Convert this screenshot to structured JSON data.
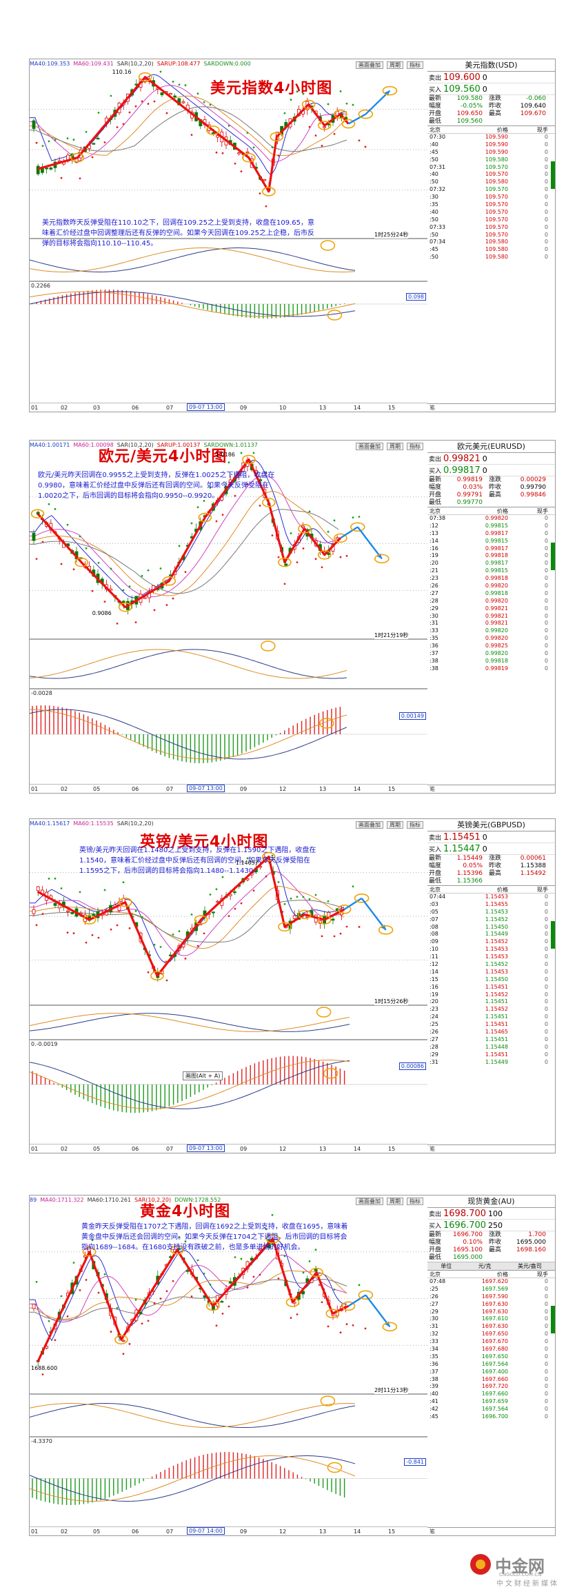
{
  "common": {
    "tools": [
      "画面叠加",
      "周期",
      "指标"
    ],
    "quote_labels": {
      "sell": "卖出",
      "buy": "买入",
      "latest": "最新",
      "change": "涨跌",
      "amplitude": "幅度",
      "prevclose": "昨收",
      "open": "开盘",
      "high": "最高",
      "low": "最低"
    },
    "tick_headers": [
      "北京",
      "价格",
      "现手"
    ],
    "foot": "笔"
  },
  "panels": [
    {
      "id": "usd",
      "indicator": [
        "MA40:109.353",
        "MA60:109.431",
        "SAR(10,2,20)",
        "SARUP:108.477",
        "SARDOWN:0.000"
      ],
      "title": "美元指数4小时图",
      "note": "美元指数昨天反弹受阻在110.10之下，回调在109.25之上受到支持，收盘在109.65，意味着汇价经过盘中回调整理后还有反弹的空间。如果今天回调在109.25之上企稳，后市反弹的目标将会指向110.10--110.45。",
      "countdown": "1时25分24秒",
      "price_labels": [
        "110.16"
      ],
      "sub_left": "0.2266",
      "valbox": "0.098",
      "xaxis": [
        "01",
        "02",
        "03",
        "06",
        "07",
        "09-07 13:00",
        "09",
        "10",
        "13",
        "14",
        "15"
      ],
      "quote": {
        "title": "美元指数(USD)",
        "sell": "109.600",
        "sell_vol": "0",
        "buy": "109.560",
        "buy_vol": "0",
        "latest": "109.580",
        "change": "-0.060",
        "amplitude": "-0.05%",
        "prevclose": "109.640",
        "open": "109.650",
        "high": "109.670",
        "low": "109.560"
      },
      "ticks": [
        [
          "07:30",
          "109.590",
          "0"
        ],
        [
          ":40",
          "109.590",
          "0"
        ],
        [
          ":45",
          "109.590",
          "0"
        ],
        [
          ":50",
          "109.580",
          "0"
        ],
        [
          "07:31",
          "109.570",
          "0"
        ],
        [
          ":40",
          "109.570",
          "0"
        ],
        [
          ":50",
          "109.580",
          "0"
        ],
        [
          "07:32",
          "109.570",
          "0"
        ],
        [
          ":30",
          "109.570",
          "0"
        ],
        [
          ":35",
          "109.570",
          "0"
        ],
        [
          ":40",
          "109.570",
          "0"
        ],
        [
          ":50",
          "109.570",
          "0"
        ],
        [
          "07:33",
          "109.570",
          "0"
        ],
        [
          ":50",
          "109.570",
          "0"
        ],
        [
          "07:34",
          "109.580",
          "0"
        ],
        [
          ":45",
          "109.580",
          "0"
        ],
        [
          ":50",
          "109.580",
          "0"
        ]
      ]
    },
    {
      "id": "eur",
      "indicator": [
        "MA40:1.00171",
        "MA60:1.00098",
        "SAR(10,2,20)",
        "SARUP:1.00137",
        "SARDOWN:1.01137"
      ],
      "title": "欧元/美元4小时图",
      "note": "欧元/美元昨天回调在0.9955之上受到支持，反弹在1.0025之下遇阻，收盘在0.9980，意味着汇价经过盘中反弹后还有回调的空间。如果今天反弹受阻在1.0020之下，后市回调的目标将会指向0.9950--0.9920。",
      "countdown": "1时21分19秒",
      "price_labels": [
        "1.0186",
        "0.9086"
      ],
      "sub_left": "-0.0028",
      "valbox": "0.00149",
      "xaxis": [
        "01",
        "02",
        "05",
        "06",
        "07",
        "09-07 13:00",
        "09",
        "12",
        "13",
        "14",
        "15"
      ],
      "quote": {
        "title": "欧元美元(EURUSD)",
        "sell": "0.99821",
        "sell_vol": "0",
        "buy": "0.99817",
        "buy_vol": "0",
        "latest": "0.99819",
        "change": "0.00029",
        "amplitude": "0.03%",
        "prevclose": "0.99790",
        "open": "0.99791",
        "high": "0.99846",
        "low": "0.99770"
      },
      "ticks": [
        [
          "07:38",
          "0.99820",
          "0"
        ],
        [
          ":12",
          "0.99815",
          "0"
        ],
        [
          ":13",
          "0.99817",
          "0"
        ],
        [
          ":14",
          "0.99815",
          "0"
        ],
        [
          ":16",
          "0.99817",
          "0"
        ],
        [
          ":19",
          "0.99818",
          "0"
        ],
        [
          ":20",
          "0.99817",
          "0"
        ],
        [
          ":21",
          "0.99815",
          "0"
        ],
        [
          ":23",
          "0.99818",
          "0"
        ],
        [
          ":26",
          "0.99820",
          "0"
        ],
        [
          ":27",
          "0.99818",
          "0"
        ],
        [
          ":28",
          "0.99820",
          "0"
        ],
        [
          ":29",
          "0.99821",
          "0"
        ],
        [
          ":30",
          "0.99821",
          "0"
        ],
        [
          ":31",
          "0.99821",
          "0"
        ],
        [
          ":33",
          "0.99820",
          "0"
        ],
        [
          ":35",
          "0.99820",
          "0"
        ],
        [
          ":36",
          "0.99825",
          "0"
        ],
        [
          ":37",
          "0.99820",
          "0"
        ],
        [
          ":38",
          "0.99818",
          "0"
        ],
        [
          ":38",
          "0.99819",
          "0"
        ]
      ]
    },
    {
      "id": "gbp",
      "indicator": [
        "MA40:1.15617",
        "MA60:1.15535",
        "SAR(10,2,20)"
      ],
      "title": "英镑/美元4小时图",
      "note": "英镑/美元昨天回调在1.1480之上受到支持，反弹在1.1590之下遇阻，收盘在1.1540，意味着汇价经过盘中反弹后还有回调的空间。如果今天反弹受阻在1.1595之下，后市回调的目标将会指向1.1480--1.1430。",
      "countdown": "1时15分26秒",
      "price_labels": [
        "1.14057"
      ],
      "sub_left": "0.-0.0019",
      "valbox": "0.00086",
      "tip": "画图(Alt + A)",
      "xaxis": [
        "01",
        "02",
        "05",
        "06",
        "07",
        "09-07 13:00",
        "09",
        "12",
        "13",
        "14",
        "15"
      ],
      "quote": {
        "title": "英镑美元(GBPUSD)",
        "sell": "1.15451",
        "sell_vol": "0",
        "buy": "1.15447",
        "buy_vol": "0",
        "latest": "1.15449",
        "change": "0.00061",
        "amplitude": "0.05%",
        "prevclose": "1.15388",
        "open": "1.15396",
        "high": "1.15492",
        "low": "1.15366"
      },
      "ticks": [
        [
          "07:44",
          "1.15453",
          "0"
        ],
        [
          ":03",
          "1.15455",
          "0"
        ],
        [
          ":05",
          "1.15453",
          "0"
        ],
        [
          ":07",
          "1.15452",
          "0"
        ],
        [
          ":08",
          "1.15450",
          "0"
        ],
        [
          ":08",
          "1.15449",
          "0"
        ],
        [
          ":09",
          "1.15452",
          "0"
        ],
        [
          ":10",
          "1.15453",
          "0"
        ],
        [
          ":11",
          "1.15453",
          "0"
        ],
        [
          ":12",
          "1.15452",
          "0"
        ],
        [
          ":14",
          "1.15453",
          "0"
        ],
        [
          ":15",
          "1.15450",
          "0"
        ],
        [
          ":16",
          "1.15451",
          "0"
        ],
        [
          ":19",
          "1.15452",
          "0"
        ],
        [
          ":20",
          "1.15451",
          "0"
        ],
        [
          ":23",
          "1.15452",
          "0"
        ],
        [
          ":24",
          "1.15451",
          "0"
        ],
        [
          ":25",
          "1.15451",
          "0"
        ],
        [
          ":26",
          "1.15465",
          "0"
        ],
        [
          ":27",
          "1.15451",
          "0"
        ],
        [
          ":28",
          "1.15448",
          "0"
        ],
        [
          ":29",
          "1.15451",
          "0"
        ],
        [
          ":31",
          "1.15449",
          "0"
        ]
      ]
    },
    {
      "id": "gold",
      "indicator": [
        "89",
        "MA40:1711.322",
        "MA60:1710.261",
        "SAR(10,2,20)",
        "DOWN:1728.552"
      ],
      "title": "黄金4小时图",
      "note": "黄金昨天反弹受阻在1707之下遇阻，回调在1692之上受到支持，收盘在1695，意味着黄金盘中反弹后还会回调的空间。如果今天反弹在1704之下遇阻，后市回调的目标将会指向1689--1684。在1680支持没有跌破之前，也是多单进场的好机会。",
      "countdown": "2时11分13秒",
      "price_labels": [
        "1688.600"
      ],
      "sub_left": "-4.3370",
      "valbox": "-0.841",
      "xaxis": [
        "01",
        "02",
        "05",
        "06",
        "07",
        "09-07 14:00",
        "09",
        "12",
        "13",
        "14",
        "15"
      ],
      "quote": {
        "title": "现货黄金(AU)",
        "sell": "1698.700",
        "sell_vol": "100",
        "buy": "1696.700",
        "buy_vol": "250",
        "latest": "1696.700",
        "change": "1.700",
        "amplitude": "0.10%",
        "prevclose": "1695.000",
        "open": "1695.100",
        "high": "1698.160",
        "low": "1695.000"
      },
      "unitbar": [
        "单位",
        "元/克",
        "美元/盎司"
      ],
      "ticks": [
        [
          "07:48",
          "1697.620",
          "0"
        ],
        [
          ":25",
          "1697.569",
          "0"
        ],
        [
          ":26",
          "1697.590",
          "0"
        ],
        [
          ":27",
          "1697.630",
          "0"
        ],
        [
          ":29",
          "1697.630",
          "0"
        ],
        [
          ":30",
          "1697.610",
          "0"
        ],
        [
          ":31",
          "1697.630",
          "0"
        ],
        [
          ":32",
          "1697.650",
          "0"
        ],
        [
          ":33",
          "1697.670",
          "0"
        ],
        [
          ":34",
          "1697.680",
          "0"
        ],
        [
          ":35",
          "1697.650",
          "0"
        ],
        [
          ":36",
          "1697.564",
          "0"
        ],
        [
          ":37",
          "1697.400",
          "0"
        ],
        [
          ":38",
          "1697.660",
          "0"
        ],
        [
          ":39",
          "1697.720",
          "0"
        ],
        [
          ":40",
          "1697.660",
          "0"
        ],
        [
          ":41",
          "1697.659",
          "0"
        ],
        [
          ":42",
          "1697.564",
          "0"
        ],
        [
          ":45",
          "1696.700",
          "0"
        ]
      ]
    }
  ],
  "chart_data": [
    {
      "type": "line",
      "title": "美元指数4小时图",
      "series": [
        {
          "values": [
            108.7,
            109.0,
            109.6,
            110.16,
            109.8,
            108.9,
            108.5,
            109.9,
            109.6,
            109.65,
            109.58
          ]
        }
      ],
      "ylim": [
        108.3,
        110.4
      ]
    },
    {
      "type": "line",
      "title": "欧元/美元4小时图",
      "series": [
        {
          "values": [
            1.004,
            0.999,
            0.9086,
            0.993,
            1.008,
            1.0186,
            1.005,
            0.996,
            0.999,
            0.997,
            0.9982
          ]
        }
      ],
      "ylim": [
        0.904,
        1.022
      ]
    },
    {
      "type": "line",
      "title": "英镑/美元4小时图",
      "series": [
        {
          "values": [
            1.152,
            1.148,
            1.156,
            1.14057,
            1.152,
            1.162,
            1.148,
            1.154,
            1.152,
            1.1545
          ]
        }
      ],
      "ylim": [
        1.137,
        1.166
      ]
    },
    {
      "type": "line",
      "title": "黄金4小时图",
      "series": [
        {
          "values": [
            1688.6,
            1712,
            1695,
            1712,
            1698,
            1718,
            1694,
            1704,
            1692,
            1696.7
          ]
        }
      ],
      "ylim": [
        1682,
        1724
      ]
    }
  ],
  "brand": {
    "name": "中金网",
    "url": "CNGOLD.COM.CN",
    "tagline": "中文财经新媒体"
  }
}
